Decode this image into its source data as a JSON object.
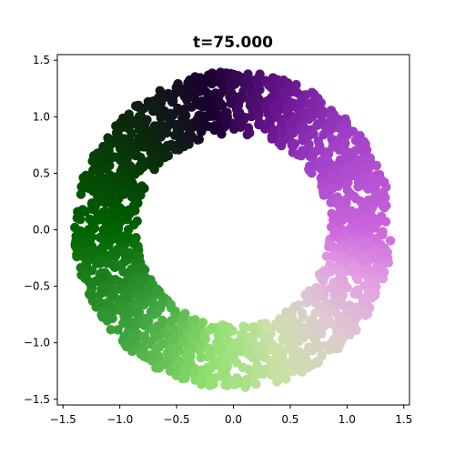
{
  "chart_data": {
    "type": "scatter",
    "title": "t=75.000",
    "xlabel": "",
    "ylabel": "",
    "xlim": [
      -1.55,
      1.55
    ],
    "ylim": [
      -1.55,
      1.55
    ],
    "xticks": [
      -1.5,
      -1.0,
      -0.5,
      0.0,
      0.5,
      1.0,
      1.5
    ],
    "xtick_labels": [
      "−1.5",
      "−1.0",
      "−0.5",
      "0.0",
      "0.5",
      "1.0",
      "1.5"
    ],
    "yticks": [
      -1.5,
      -1.0,
      -0.5,
      0.0,
      0.5,
      1.0,
      1.5
    ],
    "ytick_labels": [
      "−1.5",
      "−1.0",
      "−0.5",
      "0.0",
      "0.5",
      "1.0",
      "1.5"
    ],
    "grid": false,
    "legend": false,
    "ring": {
      "center": [
        0.0,
        0.0
      ],
      "inner_radius": 0.85,
      "outer_radius": 1.4,
      "approx_points": 2000
    },
    "color_by_angle": [
      {
        "angle_deg": 0,
        "color": "#cc66dd"
      },
      {
        "angle_deg": 40,
        "color": "#a040c8"
      },
      {
        "angle_deg": 70,
        "color": "#6a1590"
      },
      {
        "angle_deg": 100,
        "color": "#1a0030"
      },
      {
        "angle_deg": 135,
        "color": "#0a2a0a"
      },
      {
        "angle_deg": 180,
        "color": "#006400"
      },
      {
        "angle_deg": 225,
        "color": "#3fa53f"
      },
      {
        "angle_deg": 260,
        "color": "#90e070"
      },
      {
        "angle_deg": 290,
        "color": "#cce0a8"
      },
      {
        "angle_deg": 315,
        "color": "#dccbd0"
      },
      {
        "angle_deg": 340,
        "color": "#e39ee3"
      },
      {
        "angle_deg": 360,
        "color": "#cc66dd"
      }
    ]
  }
}
